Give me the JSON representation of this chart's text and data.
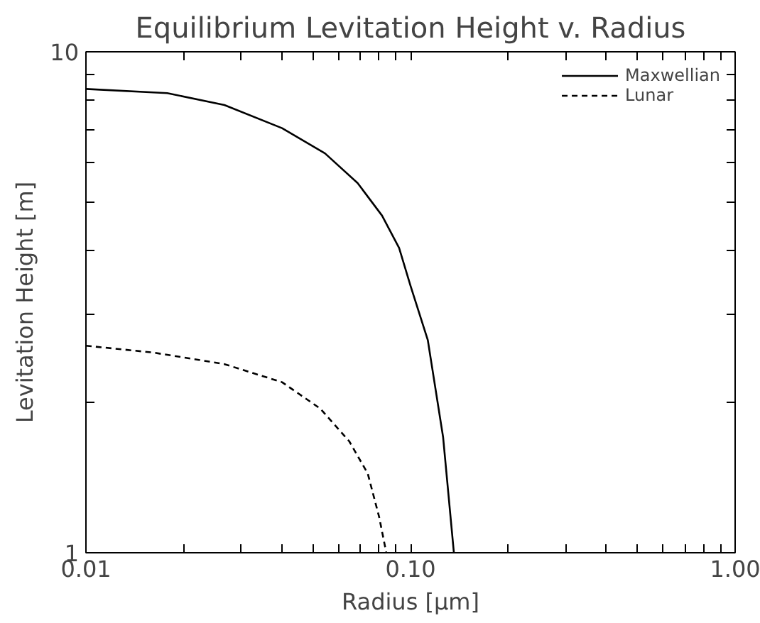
{
  "chart_data": {
    "type": "line",
    "title": "Equilibrium Levitation Height v. Radius",
    "xlabel": "Radius [μm]",
    "ylabel": "Levitation Height [m]",
    "log": "xy",
    "xlim": [
      0.01,
      1.0
    ],
    "ylim": [
      1,
      10
    ],
    "xticks": [
      {
        "value": 0.01,
        "label": "0.01"
      },
      {
        "value": 0.02,
        "label": null
      },
      {
        "value": 0.03,
        "label": null
      },
      {
        "value": 0.04,
        "label": null
      },
      {
        "value": 0.05,
        "label": null
      },
      {
        "value": 0.06,
        "label": null
      },
      {
        "value": 0.07,
        "label": null
      },
      {
        "value": 0.08,
        "label": null
      },
      {
        "value": 0.09,
        "label": null
      },
      {
        "value": 0.1,
        "label": "0.10"
      },
      {
        "value": 0.2,
        "label": null
      },
      {
        "value": 0.3,
        "label": null
      },
      {
        "value": 0.4,
        "label": null
      },
      {
        "value": 0.5,
        "label": null
      },
      {
        "value": 0.6,
        "label": null
      },
      {
        "value": 0.7,
        "label": null
      },
      {
        "value": 0.8,
        "label": null
      },
      {
        "value": 0.9,
        "label": null
      },
      {
        "value": 1.0,
        "label": "1.00"
      }
    ],
    "yticks": [
      1,
      {
        "value": 2,
        "label": null
      },
      {
        "value": 3,
        "label": null
      },
      {
        "value": 4,
        "label": null
      },
      {
        "value": 5,
        "label": null
      },
      {
        "value": 6,
        "label": null
      },
      {
        "value": 7,
        "label": null
      },
      {
        "value": 8,
        "label": null
      },
      {
        "value": 9,
        "label": null
      },
      10
    ],
    "legend": "top right",
    "grid": false,
    "series": [
      {
        "name": "Maxwellian",
        "color": "#000000",
        "line_style": "solid",
        "x": [
          0.01,
          0.0178,
          0.0267,
          0.0402,
          0.0545,
          0.0687,
          0.0817,
          0.0922,
          0.1,
          0.113,
          0.126,
          0.136
        ],
        "values": [
          8.43,
          8.27,
          7.83,
          7.04,
          6.27,
          5.47,
          4.71,
          4.06,
          3.41,
          2.66,
          1.7,
          1.0
        ]
      },
      {
        "name": "Lunar",
        "color": "#000000",
        "line_style": "dashed",
        "x": [
          0.01,
          0.0161,
          0.0267,
          0.0402,
          0.0527,
          0.0647,
          0.0738,
          0.08,
          0.0842
        ],
        "values": [
          2.59,
          2.51,
          2.38,
          2.19,
          1.94,
          1.67,
          1.44,
          1.18,
          1.0
        ]
      }
    ]
  }
}
